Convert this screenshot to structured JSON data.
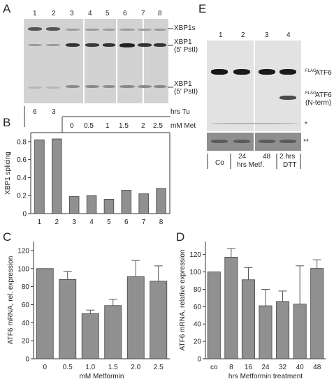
{
  "panels": {
    "a": "A",
    "b": "B",
    "c": "C",
    "d": "D",
    "e": "E"
  },
  "gel_a": {
    "lanes": [
      "1",
      "2",
      "3",
      "4",
      "5",
      "6",
      "7",
      "8"
    ],
    "band_labels": [
      {
        "main": "XBP1s",
        "sub": ""
      },
      {
        "main": "XBP1",
        "sub": "(5' PstI)"
      },
      {
        "main": "XBP1",
        "sub": "(5' PstI)"
      }
    ],
    "tu_values": [
      "6",
      "3"
    ],
    "tu_label": "hrs Tu",
    "met_values": [
      "0",
      "0.5",
      "1",
      "1.5",
      "2",
      "2.5"
    ],
    "met_label": "mM Met"
  },
  "gel_e": {
    "lanes": [
      "1",
      "2",
      "3",
      "4"
    ],
    "label_flag_sup": "FLAG",
    "label_atf6": "ATF6",
    "label_nterm": "(N-term)",
    "label_star": "*",
    "label_dstar": "**",
    "cond_co": "Co",
    "cond_24": "24",
    "cond_48": "48",
    "cond_metf": "hrs Metf.",
    "cond_2hrs": "2 hrs",
    "cond_dtt": "DTT"
  },
  "chart_data": [
    {
      "panel": "B",
      "type": "bar",
      "categories": [
        "1",
        "2",
        "3",
        "4",
        "5",
        "6",
        "7",
        "8"
      ],
      "values": [
        0.82,
        0.83,
        0.19,
        0.2,
        0.16,
        0.26,
        0.22,
        0.28
      ],
      "xlabel": "",
      "ylabel": "XBP1 splicing",
      "ylim": [
        0,
        0.9
      ],
      "yticks": [
        "0",
        "0.2",
        "0.4",
        "0.6",
        "0.8"
      ],
      "bar_color": "#909090"
    },
    {
      "panel": "C",
      "type": "bar",
      "categories": [
        "0",
        "0.5",
        "1.0",
        "1.5",
        "2.0",
        "2.5"
      ],
      "values": [
        100,
        88,
        50,
        59,
        91,
        86
      ],
      "errors": [
        0,
        9,
        4,
        7,
        18,
        17
      ],
      "xlabel": "mM Metformin",
      "ylabel": "ATF6 mRNA, rel. expression",
      "ylim": [
        0,
        130
      ],
      "yticks": [
        "0",
        "20",
        "40",
        "60",
        "80",
        "100",
        "120"
      ],
      "bar_color": "#909090"
    },
    {
      "panel": "D",
      "type": "bar",
      "categories": [
        "co",
        "8",
        "16",
        "24",
        "32",
        "40",
        "48"
      ],
      "values": [
        100,
        117,
        91,
        61,
        66,
        63,
        104
      ],
      "errors": [
        0,
        10,
        14,
        19,
        12,
        44,
        10
      ],
      "xlabel": "hrs Metformin treatment",
      "ylabel": "ATF6 mRNA, relative expression",
      "ylim": [
        0,
        135
      ],
      "yticks": [
        "0",
        "20",
        "40",
        "60",
        "80",
        "100",
        "120"
      ],
      "bar_color": "#909090"
    }
  ]
}
